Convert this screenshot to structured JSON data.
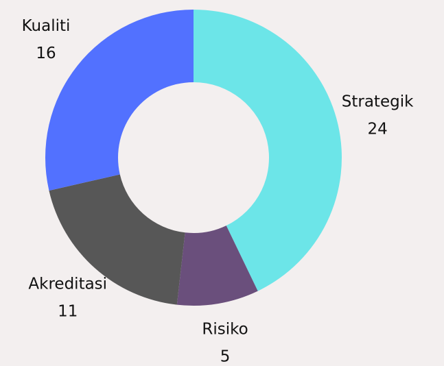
{
  "chart_data": {
    "type": "donut",
    "categories": [
      "Strategik",
      "Risiko",
      "Akreditasi",
      "Kualiti"
    ],
    "values": [
      24,
      5,
      11,
      16
    ],
    "colors": [
      "#6ce5e8",
      "#6a4f7c",
      "#575757",
      "#5271ff"
    ]
  }
}
